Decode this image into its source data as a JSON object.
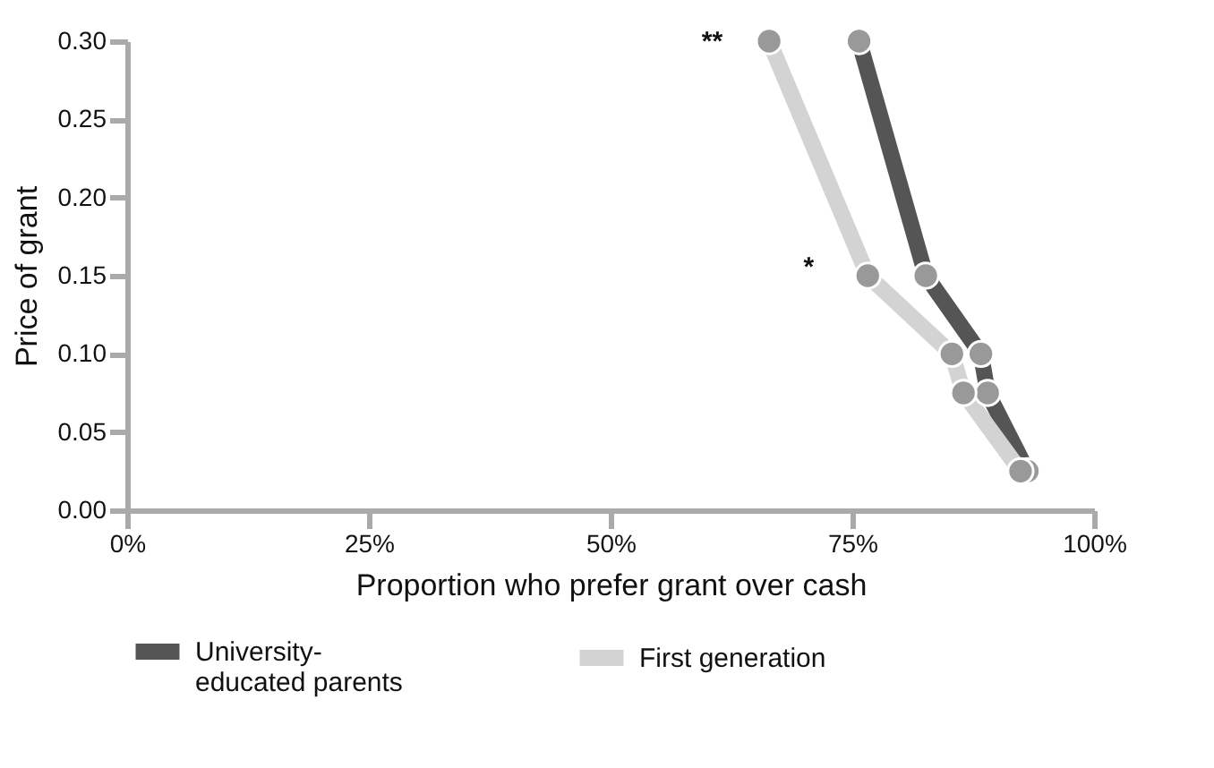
{
  "chart_data": {
    "type": "line",
    "xlabel": "Proportion who prefer grant over cash",
    "ylabel": "Price of grant",
    "series": [
      {
        "name": "University-educated parents",
        "color": "#555555",
        "x": [
          75.7,
          82.6,
          88.3,
          89.0,
          93.1
        ],
        "values": [
          0.3,
          0.15,
          0.1,
          0.075,
          0.025
        ]
      },
      {
        "name": "First generation",
        "color": "#d3d3d3",
        "x": [
          66.4,
          76.6,
          85.3,
          86.5,
          92.4
        ],
        "values": [
          0.3,
          0.15,
          0.1,
          0.075,
          0.025
        ]
      }
    ],
    "xlim": [
      0,
      100
    ],
    "xticks": [
      {
        "value": 0,
        "label": "0%"
      },
      {
        "value": 25,
        "label": "25%"
      },
      {
        "value": 50,
        "label": "50%"
      },
      {
        "value": 75,
        "label": "75%"
      },
      {
        "value": 100,
        "label": "100%"
      }
    ],
    "ylim": [
      0,
      0.3
    ],
    "yticks": [
      {
        "value": 0,
        "label": "0.00"
      },
      {
        "value": 0.05,
        "label": "0.05"
      },
      {
        "value": 0.1,
        "label": "0.10"
      },
      {
        "value": 0.15,
        "label": "0.15"
      },
      {
        "value": 0.2,
        "label": "0.20"
      },
      {
        "value": 0.25,
        "label": "0.25"
      },
      {
        "value": 0.3,
        "label": "0.30"
      }
    ],
    "annotations": [
      "**",
      "*"
    ],
    "marker": "circle",
    "line_style": "solid",
    "grid": false,
    "legend": "bottom"
  }
}
